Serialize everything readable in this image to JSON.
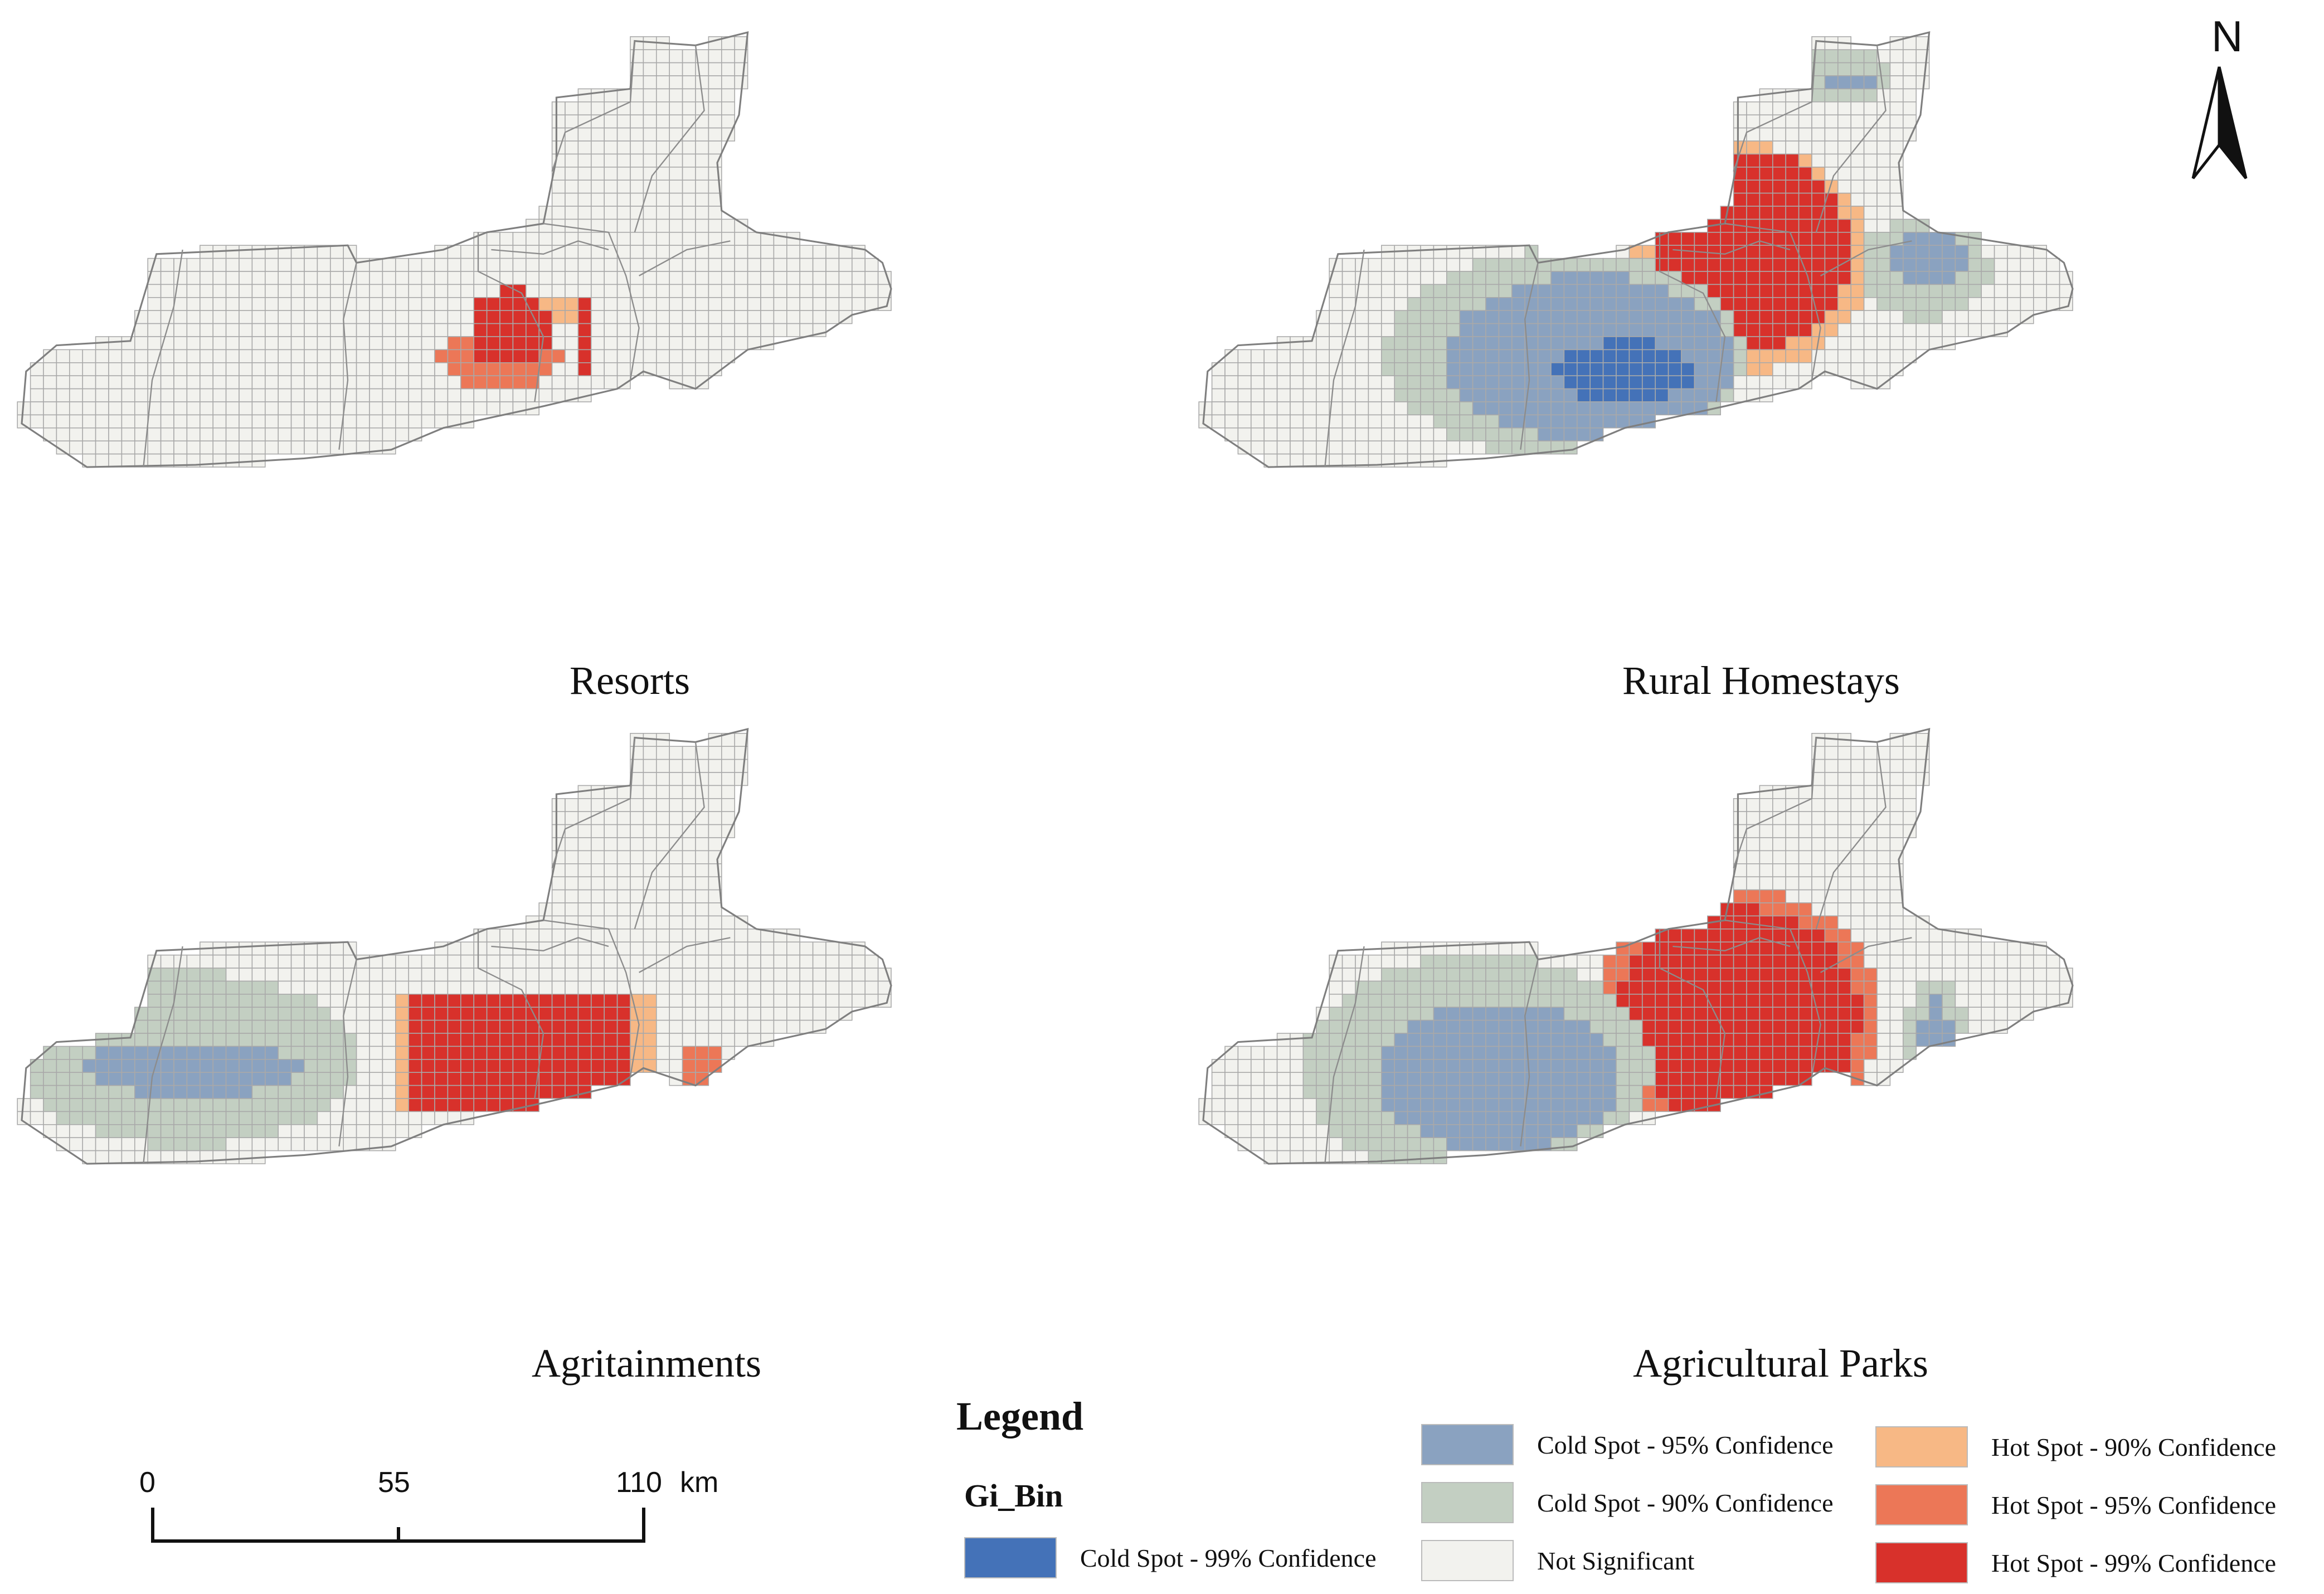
{
  "panels": [
    {
      "key": "resorts",
      "title": "Resorts"
    },
    {
      "key": "rural",
      "title": "Rural Homestays"
    },
    {
      "key": "agri",
      "title": "Agritainments"
    },
    {
      "key": "parks",
      "title": "Agricultural Parks"
    }
  ],
  "north": {
    "label": "N"
  },
  "legend": {
    "title": "Legend",
    "field": "Gi_Bin",
    "items": [
      {
        "key": "cold99",
        "label": "Cold Spot - 99% Confidence",
        "color": "#4472b8"
      },
      {
        "key": "cold95",
        "label": "Cold Spot - 95% Confidence",
        "color": "#8aa2c0"
      },
      {
        "key": "cold90",
        "label": "Cold Spot - 90% Confidence",
        "color": "#c3cfc2"
      },
      {
        "key": "ns",
        "label": "Not Significant",
        "color": "#f2f2ee"
      },
      {
        "key": "hot90",
        "label": "Hot Spot - 90% Confidence",
        "color": "#f7b885"
      },
      {
        "key": "hot95",
        "label": "Hot Spot - 95% Confidence",
        "color": "#ec7757"
      },
      {
        "key": "hot99",
        "label": "Hot Spot - 99% Confidence",
        "color": "#d8312b"
      }
    ]
  },
  "scale": {
    "ticks": [
      "0",
      "55",
      "110"
    ],
    "unit": "km"
  }
}
